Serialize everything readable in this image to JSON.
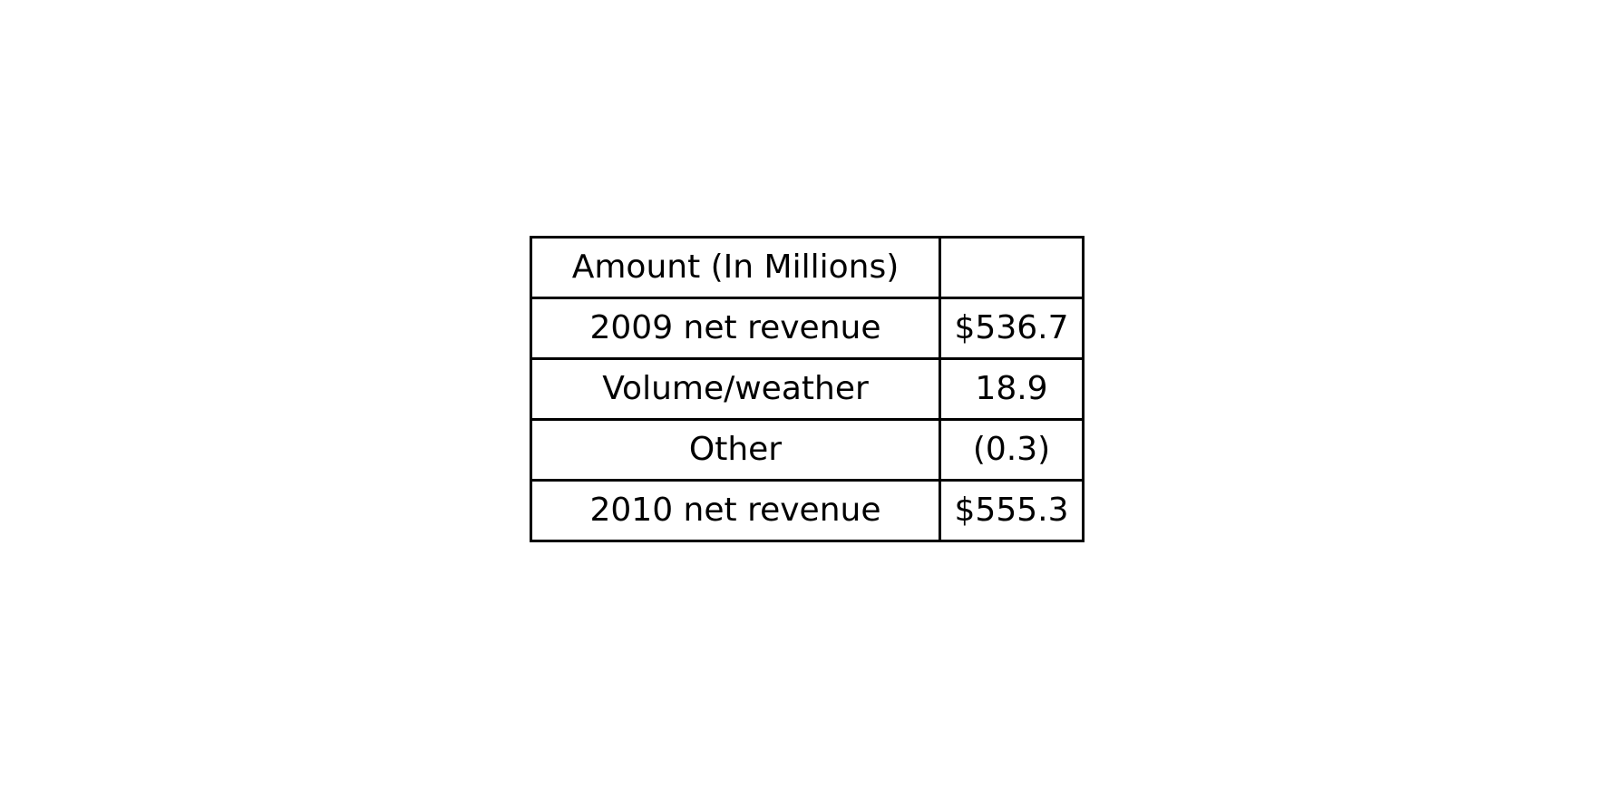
{
  "table": {
    "header": {
      "label": "Amount (In Millions)",
      "value": ""
    },
    "rows": [
      {
        "label": "2009 net revenue",
        "value": "$536.7"
      },
      {
        "label": "Volume/weather",
        "value": "18.9"
      },
      {
        "label": "Other",
        "value": "(0.3)"
      },
      {
        "label": "2010 net revenue",
        "value": "$555.3"
      }
    ]
  }
}
